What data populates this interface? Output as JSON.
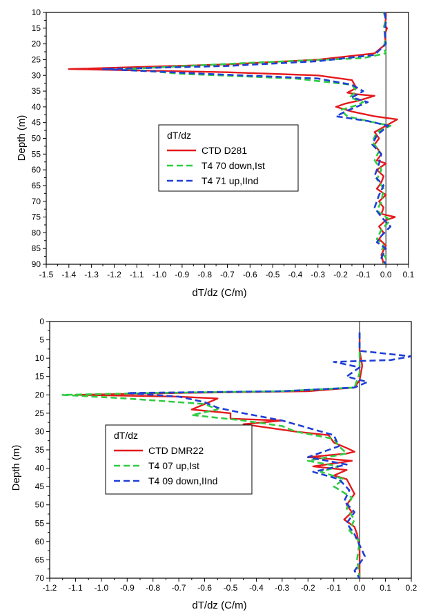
{
  "chart_data": [
    {
      "type": "line",
      "title": "",
      "xlabel": "dT/dz   (C/m)",
      "ylabel": "Depth    (m)",
      "xlim": [
        -1.5,
        0.1
      ],
      "ylim": [
        10,
        90
      ],
      "y_inverted": true,
      "x_ticks": [
        "-1.5",
        "-1.4",
        "-1.3",
        "-1.2",
        "-1.1",
        "-1.0",
        "-0.9",
        "-0.8",
        "-0.7",
        "-0.6",
        "-0.5",
        "-0.4",
        "-0.3",
        "-0.2",
        "-0.1",
        "0.0",
        "0.1"
      ],
      "y_ticks": [
        "10",
        "15",
        "20",
        "25",
        "30",
        "35",
        "40",
        "45",
        "50",
        "55",
        "60",
        "65",
        "70",
        "75",
        "80",
        "85",
        "90"
      ],
      "legend": {
        "title": "dT/dz",
        "placement": "center-right"
      },
      "colors": {
        "ctd": "#e41a1c",
        "down": "#2ecc40",
        "up": "#1f3fd6"
      },
      "series": [
        {
          "name": "CTD D281",
          "style": "solid",
          "color": "#e41a1c",
          "x": [
            0.0,
            0.0,
            -0.005,
            0.005,
            -0.005,
            0.0,
            -0.05,
            -0.3,
            -0.7,
            -1.4,
            -0.7,
            -0.3,
            -0.15,
            -0.13,
            -0.17,
            -0.13,
            -0.05,
            -0.12,
            -0.18,
            -0.22,
            -0.15,
            -0.05,
            0.05,
            0.0,
            -0.05,
            -0.03,
            -0.05,
            -0.02,
            -0.04,
            0.0,
            -0.04,
            -0.01,
            -0.02,
            -0.04,
            0.0,
            -0.03,
            -0.01,
            -0.02,
            0.04,
            0.0,
            -0.03,
            -0.01,
            -0.03,
            0.0,
            -0.02,
            -0.01
          ],
          "y": [
            10,
            12,
            14,
            15,
            17,
            20,
            23,
            25,
            26.5,
            28,
            29,
            30,
            31.5,
            34,
            35.5,
            36,
            36.5,
            38,
            39,
            40,
            41.5,
            43,
            44,
            46,
            48,
            50,
            52,
            55,
            57,
            58,
            60,
            62,
            64,
            66,
            68,
            70,
            72,
            74,
            75,
            76,
            78,
            80,
            82,
            84,
            87,
            90
          ]
        },
        {
          "name": "T4 70 down,Ist",
          "style": "dashed",
          "color": "#2ecc40",
          "x": [
            -0.01,
            0.0,
            -0.01,
            0.0,
            -0.01,
            0.0,
            -0.1,
            -0.6,
            -1.15,
            -0.9,
            -0.4,
            -0.15,
            -0.13,
            -0.16,
            -0.1,
            -0.13,
            -0.2,
            -0.17,
            -0.08,
            0.02,
            -0.04,
            -0.06,
            -0.03,
            -0.05,
            -0.02,
            -0.04,
            -0.01,
            -0.02,
            -0.04,
            0.02,
            -0.02,
            -0.04,
            -0.01,
            -0.02,
            0.0,
            -0.01
          ],
          "y": [
            10,
            12,
            15,
            18,
            21,
            23,
            24.5,
            26,
            28,
            29.5,
            31,
            33,
            35,
            37,
            38.5,
            39.5,
            41,
            43,
            44.5,
            46,
            48,
            51,
            54,
            57,
            60,
            63,
            66,
            70,
            73,
            76,
            79,
            82,
            84,
            86,
            88,
            90
          ]
        },
        {
          "name": "T4 71 up,IInd",
          "style": "dashed",
          "color": "#1f3fd6",
          "x": [
            -0.005,
            0.0,
            -0.005,
            0.0,
            -0.05,
            -0.3,
            -0.7,
            -1.25,
            -0.8,
            -0.3,
            -0.15,
            -0.1,
            -0.15,
            -0.08,
            -0.13,
            -0.18,
            -0.22,
            -0.08,
            0.01,
            -0.04,
            -0.06,
            -0.02,
            -0.03,
            -0.05,
            -0.01,
            -0.03,
            -0.05,
            -0.02,
            0.02,
            -0.02,
            -0.04,
            0.0,
            -0.02,
            0.0
          ],
          "y": [
            10,
            13,
            16,
            20,
            23.5,
            25.5,
            27,
            28,
            29.5,
            31,
            33,
            35,
            37,
            38.5,
            40,
            41.5,
            43,
            44.5,
            46,
            49,
            52,
            55,
            58,
            62,
            65,
            68,
            72,
            75,
            78,
            81,
            83,
            85,
            88,
            90
          ]
        }
      ]
    },
    {
      "type": "line",
      "title": "",
      "xlabel": "dT/dz   (C/m)",
      "ylabel": "Depth    (m)",
      "xlim": [
        -1.2,
        0.2
      ],
      "ylim": [
        0,
        70
      ],
      "y_inverted": true,
      "x_ticks": [
        "-1.2",
        "-1.1",
        "-1.0",
        "-0.9",
        "-0.8",
        "-0.7",
        "-0.6",
        "-0.5",
        "-0.4",
        "-0.3",
        "-0.2",
        "-0.1",
        "0.0",
        "0.1",
        "0.2"
      ],
      "y_ticks": [
        "0",
        "5",
        "10",
        "15",
        "20",
        "25",
        "30",
        "35",
        "40",
        "45",
        "50",
        "55",
        "60",
        "65",
        "70"
      ],
      "legend": {
        "title": "dT/dz",
        "placement": "center-left"
      },
      "colors": {
        "ctd": "#e41a1c",
        "up": "#2ecc40",
        "down": "#1f3fd6"
      },
      "series": [
        {
          "name": "CTD DMR22",
          "style": "solid",
          "color": "#e41a1c",
          "x": [
            0.0,
            0.0,
            0.01,
            0.0,
            -0.02,
            -0.2,
            -0.7,
            -1.1,
            -0.7,
            -0.55,
            -0.6,
            -0.65,
            -0.5,
            -0.5,
            -0.3,
            -0.45,
            -0.25,
            -0.12,
            -0.1,
            -0.05,
            -0.02,
            -0.05,
            -0.2,
            -0.03,
            -0.18,
            -0.05,
            -0.1,
            -0.05,
            -0.02,
            -0.05,
            -0.03,
            -0.06,
            -0.02,
            -0.01,
            0.0,
            0.0,
            0.0
          ],
          "y": [
            3,
            8,
            12,
            16,
            18,
            19,
            19.5,
            20,
            20.5,
            21,
            22.5,
            24,
            25,
            26.5,
            27,
            28,
            30,
            31,
            33,
            34.5,
            35.5,
            36,
            37,
            38,
            39.5,
            40.5,
            42,
            43,
            47,
            50,
            52,
            54,
            56,
            58,
            62,
            66,
            70
          ]
        },
        {
          "name": "T4 07 up,Ist",
          "style": "dashed",
          "color": "#2ecc40",
          "x": [
            0.0,
            0.0,
            0.0,
            -0.02,
            -0.3,
            -0.8,
            -1.15,
            -0.9,
            -0.6,
            -0.55,
            -0.65,
            -0.45,
            -0.3,
            -0.25,
            -0.1,
            -0.08,
            -0.05,
            -0.2,
            -0.08,
            -0.15,
            -0.06,
            -0.1,
            -0.03,
            -0.05,
            -0.02,
            -0.04,
            0.0,
            -0.01,
            0.0
          ],
          "y": [
            3,
            9,
            14,
            18,
            19,
            19.5,
            20,
            21,
            22.5,
            24,
            25.5,
            27,
            28.5,
            30,
            32,
            34,
            36,
            38,
            39.5,
            41,
            43,
            45,
            48,
            51,
            54,
            57,
            60,
            65,
            70
          ]
        },
        {
          "name": "T4 09 down,IInd",
          "style": "dashed",
          "color": "#1f3fd6",
          "x": [
            0.0,
            0.0,
            0.2,
            0.12,
            -0.1,
            0.0,
            -0.05,
            0.03,
            -0.02,
            -0.3,
            -0.9,
            -0.7,
            -0.6,
            -0.55,
            -0.45,
            -0.3,
            -0.2,
            -0.1,
            -0.08,
            -0.2,
            -0.05,
            -0.18,
            -0.08,
            -0.04,
            -0.06,
            -0.02,
            -0.05,
            -0.02,
            0.02,
            0.0,
            -0.02,
            0.0
          ],
          "y": [
            3,
            8,
            9.5,
            10.5,
            11,
            12.5,
            15,
            16.5,
            18,
            19,
            19.5,
            20.5,
            22,
            23.5,
            25,
            27,
            29,
            31,
            34,
            37,
            39,
            41,
            43,
            46,
            49,
            52,
            55,
            58,
            64,
            66,
            68,
            70
          ]
        }
      ]
    }
  ]
}
